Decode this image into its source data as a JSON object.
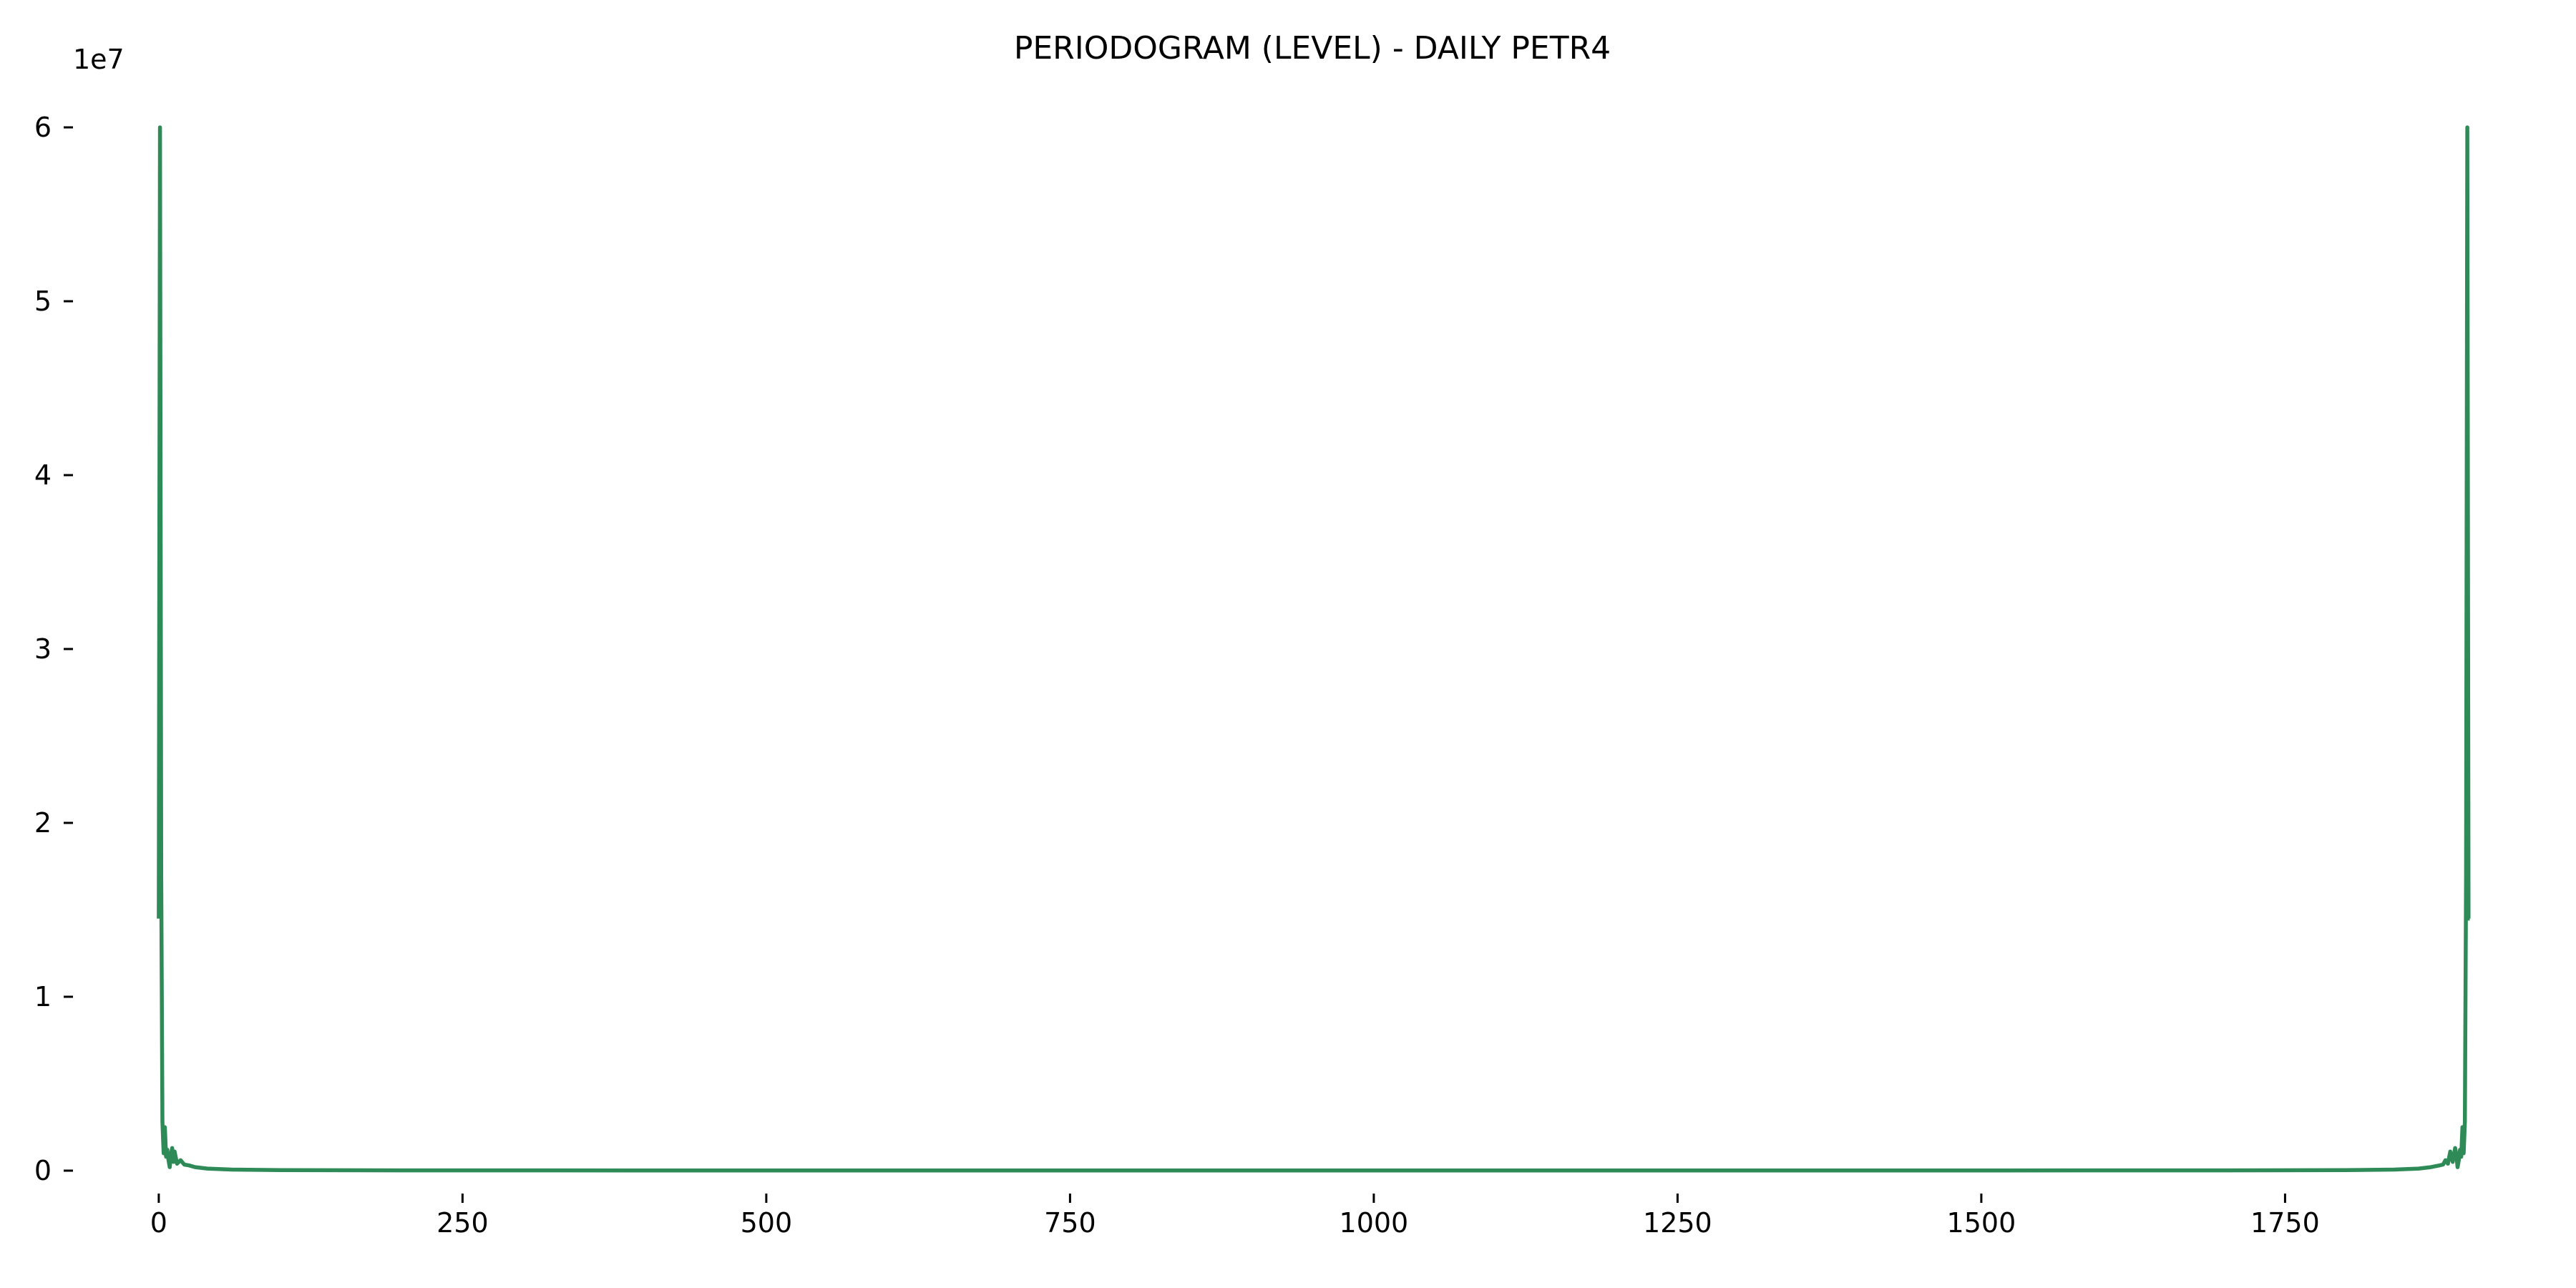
{
  "chart_data": {
    "type": "line",
    "title": "PERIODOGRAM (LEVEL) - DAILY PETR4",
    "xlabel": "",
    "ylabel": "",
    "y_offset_label": "1e7",
    "color": "#2e8b57",
    "xlim": [
      -60,
      1960
    ],
    "ylim": [
      0,
      60000000
    ],
    "grid": false,
    "x_ticks": [
      {
        "value": 0,
        "label": "0"
      },
      {
        "value": 250,
        "label": "250"
      },
      {
        "value": 500,
        "label": "500"
      },
      {
        "value": 750,
        "label": "750"
      },
      {
        "value": 1000,
        "label": "1000"
      },
      {
        "value": 1250,
        "label": "1250"
      },
      {
        "value": 1500,
        "label": "1500"
      },
      {
        "value": 1750,
        "label": "1750"
      }
    ],
    "y_ticks": [
      {
        "value": 0,
        "label": "0"
      },
      {
        "value": 10000000,
        "label": "1"
      },
      {
        "value": 20000000,
        "label": "2"
      },
      {
        "value": 30000000,
        "label": "3"
      },
      {
        "value": 40000000,
        "label": "4"
      },
      {
        "value": 50000000,
        "label": "5"
      },
      {
        "value": 60000000,
        "label": "6"
      }
    ],
    "series": [
      {
        "x": [
          0,
          1,
          2,
          3,
          4,
          5,
          6,
          7,
          8,
          9,
          10,
          11,
          12,
          13,
          15,
          18,
          21,
          25,
          30,
          40,
          60,
          100,
          200,
          500,
          950,
          1400,
          1700,
          1800,
          1840,
          1860,
          1870,
          1877,
          1880,
          1882,
          1884,
          1886,
          1888,
          1890,
          1891,
          1892,
          1893,
          1894,
          1895,
          1896,
          1897,
          1898,
          1899,
          1900,
          1901,
          1902
        ],
        "y": [
          14500000,
          60000000,
          17000000,
          2800000,
          1000000,
          2500000,
          800000,
          1200000,
          600000,
          200000,
          900000,
          1300000,
          500000,
          1100000,
          400000,
          600000,
          350000,
          300000,
          200000,
          120000,
          60000,
          30000,
          15000,
          10000,
          8000,
          10000,
          15000,
          30000,
          60000,
          120000,
          200000,
          300000,
          350000,
          600000,
          400000,
          1100000,
          500000,
          1300000,
          900000,
          200000,
          600000,
          1200000,
          800000,
          2500000,
          1000000,
          2800000,
          17000000,
          60000000,
          14500000,
          14500000
        ]
      }
    ]
  }
}
